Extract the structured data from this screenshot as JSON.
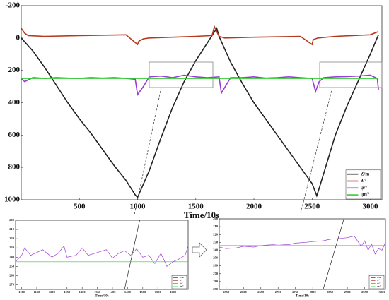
{
  "chart_data": [
    {
      "type": "line",
      "xlabel": "Time/10s",
      "y_inverted": true,
      "legend": "lower right",
      "xlim": [
        0,
        3100
      ],
      "ylim": [
        -200,
        1000
      ],
      "xticks": [
        500,
        1000,
        1500,
        2000,
        2500,
        3000
      ],
      "yticks": [
        -200,
        0,
        200,
        400,
        600,
        800,
        1000
      ],
      "series": [
        {
          "name": "Z/m",
          "color": "#222222",
          "x": [
            0,
            100,
            200,
            300,
            400,
            500,
            600,
            700,
            800,
            900,
            980,
            1000,
            1100,
            1200,
            1300,
            1400,
            1500,
            1600,
            1680,
            1700,
            1800,
            1900,
            2000,
            2100,
            2200,
            2300,
            2400,
            2500,
            2540,
            2560,
            2700,
            2800,
            2900,
            3000,
            3070
          ],
          "values": [
            0,
            80,
            180,
            290,
            400,
            500,
            590,
            690,
            790,
            880,
            970,
            985,
            820,
            620,
            430,
            270,
            140,
            30,
            -60,
            -10,
            150,
            280,
            400,
            500,
            600,
            700,
            800,
            900,
            975,
            930,
            600,
            420,
            260,
            100,
            -20
          ]
        },
        {
          "name": "θ/°",
          "color": "#b5391e",
          "x": [
            0,
            30,
            60,
            200,
            500,
            900,
            1000,
            1010,
            1050,
            1100,
            1300,
            1500,
            1640,
            1660,
            1680,
            1700,
            1750,
            2000,
            2400,
            2500,
            2510,
            2550,
            2700,
            3000,
            3070
          ],
          "values": [
            -60,
            -30,
            -15,
            -10,
            -15,
            -20,
            40,
            20,
            5,
            0,
            -5,
            -10,
            -15,
            -70,
            -40,
            -10,
            0,
            -5,
            -10,
            40,
            10,
            0,
            -10,
            -20,
            -40
          ]
        },
        {
          "name": "ψ/°",
          "color": "#9b3bd4",
          "x": [
            0,
            30,
            100,
            200,
            300,
            400,
            500,
            600,
            700,
            800,
            900,
            980,
            1000,
            1050,
            1100,
            1200,
            1300,
            1400,
            1500,
            1600,
            1700,
            1720,
            1800,
            1900,
            2000,
            2100,
            2200,
            2300,
            2400,
            2500,
            2530,
            2560,
            2600,
            2700,
            2800,
            2900,
            3000,
            3060,
            3070
          ],
          "values": [
            250,
            270,
            245,
            250,
            245,
            248,
            250,
            245,
            248,
            245,
            250,
            255,
            350,
            300,
            240,
            235,
            245,
            230,
            240,
            245,
            240,
            340,
            245,
            245,
            240,
            248,
            245,
            240,
            245,
            250,
            330,
            270,
            245,
            240,
            238,
            235,
            230,
            250,
            320
          ]
        },
        {
          "name": "ψr/°",
          "color": "#33cc33",
          "x": [
            0,
            3070
          ],
          "values": [
            250,
            250
          ]
        }
      ]
    },
    {
      "type": "line",
      "xlabel": "Time/10s",
      "y_inverted": true,
      "legend": "lower right",
      "xlim": [
        1080,
        1650
      ],
      "ylim": [
        200,
        275
      ],
      "xticks": [
        1100,
        1150,
        1200,
        1250,
        1300,
        1350,
        1400,
        1450,
        1500,
        1550,
        1600
      ],
      "yticks": [
        200,
        210,
        220,
        230,
        240,
        250,
        260,
        270
      ],
      "series": [
        {
          "name": "Z/m",
          "color": "#222222",
          "x": [
            1440,
            1490
          ],
          "values": [
            275,
            200
          ]
        },
        {
          "name": "θ/°",
          "color": "#b5391e",
          "x": [],
          "values": []
        },
        {
          "name": "ψ/°",
          "color": "#9b3bd4",
          "x": [
            1080,
            1100,
            1110,
            1130,
            1150,
            1170,
            1200,
            1220,
            1240,
            1250,
            1280,
            1300,
            1320,
            1350,
            1380,
            1400,
            1420,
            1440,
            1460,
            1480,
            1500,
            1520,
            1540,
            1560,
            1580,
            1600,
            1620,
            1640,
            1650
          ],
          "values": [
            245,
            238,
            230,
            238,
            235,
            232,
            240,
            236,
            228,
            240,
            238,
            230,
            238,
            235,
            232,
            241,
            236,
            233,
            238,
            231,
            240,
            238,
            247,
            236,
            250,
            245,
            242,
            238,
            228
          ]
        },
        {
          "name": "ψr/°",
          "color": "#33cc33",
          "x": [
            1080,
            1650
          ],
          "values": [
            245,
            245
          ]
        }
      ]
    },
    {
      "type": "line",
      "xlabel": "Time/10s",
      "y_inverted": true,
      "legend": "lower right",
      "xlim": [
        2530,
        3010
      ],
      "ylim": [
        200,
        290
      ],
      "xticks": [
        2550,
        2600,
        2650,
        2700,
        2750,
        2800,
        2850,
        2900,
        2950,
        3000
      ],
      "yticks": [
        200,
        210,
        220,
        230,
        240,
        250,
        260,
        270,
        280,
        290
      ],
      "series": [
        {
          "name": "Z/m",
          "color": "#222222",
          "x": [
            2830,
            2890
          ],
          "values": [
            290,
            200
          ]
        },
        {
          "name": "θ/°",
          "color": "#b5391e",
          "x": [],
          "values": []
        },
        {
          "name": "ψ/°",
          "color": "#9b3bd4",
          "x": [
            2530,
            2550,
            2580,
            2600,
            2630,
            2650,
            2680,
            2700,
            2730,
            2750,
            2780,
            2800,
            2830,
            2850,
            2880,
            2900,
            2920,
            2940,
            2950,
            2960,
            2970,
            2980,
            2990,
            3000,
            3010
          ],
          "values": [
            236,
            238,
            237,
            235,
            236,
            234,
            233,
            232,
            233,
            231,
            230,
            229,
            228,
            226,
            225,
            224,
            222,
            235,
            228,
            240,
            232,
            245,
            238,
            240,
            230
          ]
        },
        {
          "name": "ψr/°",
          "color": "#33cc33",
          "x": [
            2530,
            3010
          ],
          "values": [
            234,
            234
          ]
        }
      ]
    }
  ]
}
